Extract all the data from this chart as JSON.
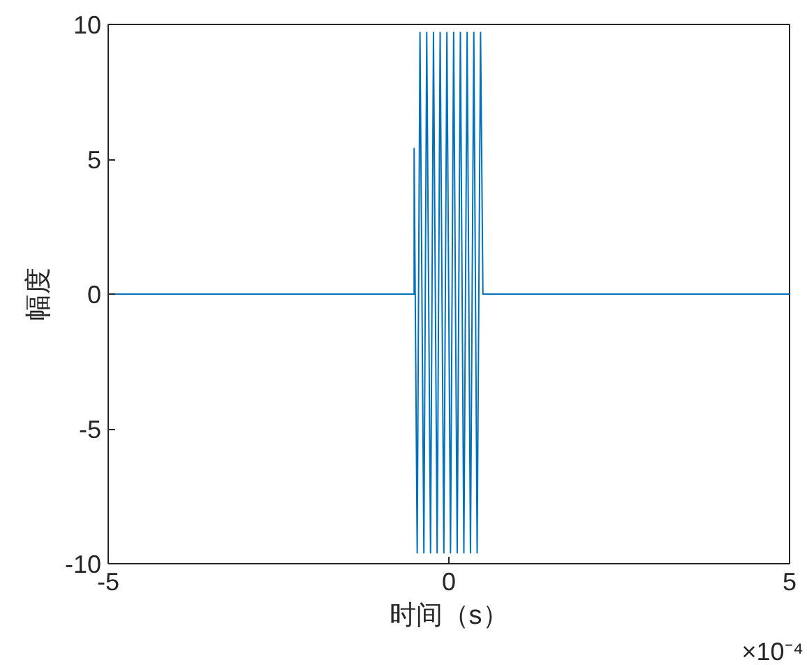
{
  "chart_data": {
    "type": "line",
    "xlabel": "时间（s）",
    "ylabel": "幅度",
    "x": [
      -5,
      -0.51,
      -0.51,
      -0.465,
      -0.424,
      -0.367,
      -0.325,
      -0.269,
      -0.226,
      -0.172,
      -0.128,
      -0.074,
      -0.029,
      0.024,
      0.07,
      0.122,
      0.169,
      0.22,
      0.268,
      0.317,
      0.366,
      0.415,
      0.465,
      0.5,
      5
    ],
    "series": [
      {
        "color": "#0072bd",
        "values": [
          0,
          0,
          5.4,
          -9.6,
          9.7,
          -9.6,
          9.7,
          -9.6,
          9.7,
          -9.6,
          9.7,
          -9.6,
          9.7,
          -9.6,
          9.7,
          -9.6,
          9.7,
          -9.6,
          9.7,
          -9.6,
          9.7,
          -9.6,
          9.7,
          0,
          0
        ]
      }
    ],
    "xlim": [
      -5,
      5
    ],
    "ylim": [
      -10,
      10
    ],
    "xticks": [
      -5,
      0,
      5
    ],
    "yticks": [
      -10,
      -5,
      0,
      5,
      10
    ],
    "annotations": [
      "×10⁻⁴"
    ],
    "grid": false,
    "marker": "none",
    "line_style": "solid"
  }
}
